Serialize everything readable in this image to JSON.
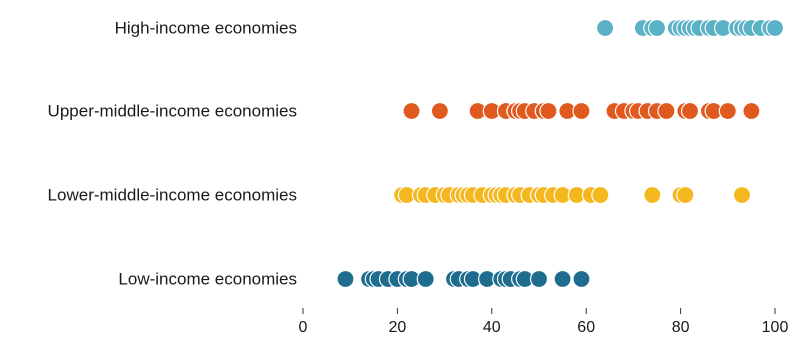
{
  "chart_data": {
    "type": "scatter",
    "title": "",
    "xlabel": "",
    "ylabel": "",
    "xlim": [
      0,
      100
    ],
    "xticks": [
      0,
      20,
      40,
      60,
      80,
      100
    ],
    "grid": false,
    "legend": "none",
    "categories": [
      "High-income economies",
      "Upper-middle-income economies",
      "Lower-middle-income economies",
      "Low-income economies"
    ],
    "series": [
      {
        "category": "High-income economies",
        "color": "#5bb1c6",
        "values": [
          64,
          72,
          74,
          75,
          79,
          80,
          81,
          82,
          83,
          84,
          86,
          87,
          89,
          92,
          93,
          94,
          95,
          97,
          99,
          100
        ]
      },
      {
        "category": "Upper-middle-income economies",
        "color": "#e0591f",
        "values": [
          23,
          29,
          37,
          40,
          43,
          45,
          46,
          47,
          49,
          51,
          52,
          56,
          59,
          66,
          68,
          70,
          71,
          73,
          75,
          77,
          81,
          82,
          86,
          87,
          90,
          95
        ]
      },
      {
        "category": "Lower-middle-income economies",
        "color": "#f4b71d",
        "values": [
          21,
          22,
          25,
          26,
          28,
          30,
          31,
          33,
          34,
          35,
          36,
          38,
          40,
          41,
          42,
          43,
          45,
          46,
          48,
          50,
          51,
          53,
          55,
          58,
          61,
          63,
          74,
          80,
          81,
          93
        ]
      },
      {
        "category": "Low-income economies",
        "color": "#1e6d8e",
        "values": [
          9,
          14,
          15,
          16,
          18,
          20,
          22,
          23,
          26,
          32,
          33,
          35,
          36,
          39,
          42,
          43,
          44,
          46,
          47,
          50,
          55,
          59
        ]
      }
    ]
  }
}
